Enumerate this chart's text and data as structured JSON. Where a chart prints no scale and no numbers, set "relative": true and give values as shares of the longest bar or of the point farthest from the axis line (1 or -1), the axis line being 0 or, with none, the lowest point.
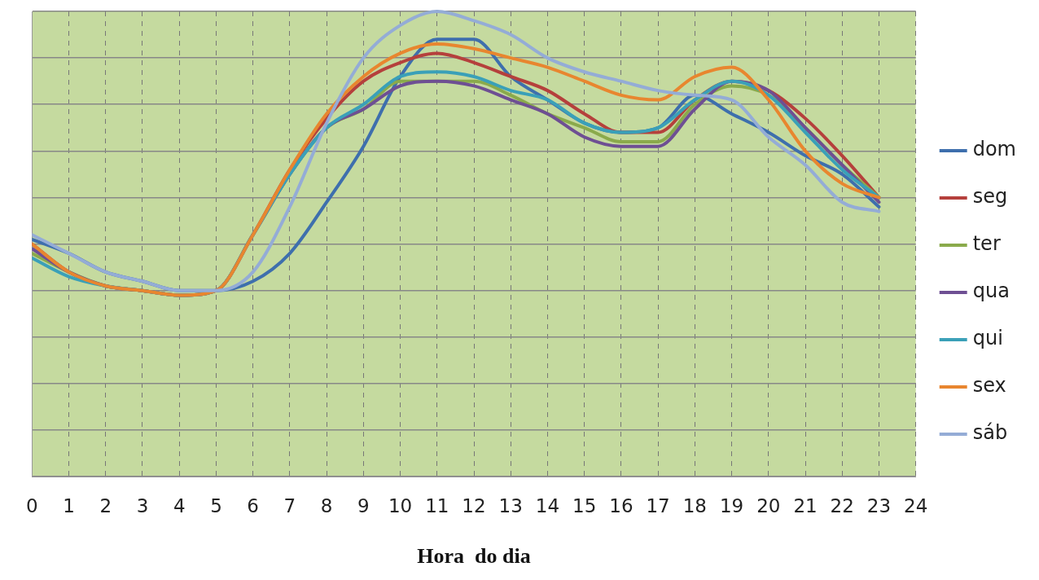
{
  "chart_data": {
    "type": "line",
    "relative": true,
    "xlabel": "Hora  do dia",
    "x": [
      0,
      1,
      2,
      3,
      4,
      5,
      6,
      7,
      8,
      9,
      10,
      11,
      12,
      13,
      14,
      15,
      16,
      17,
      18,
      19,
      20,
      21,
      22,
      23
    ],
    "xlim": [
      0,
      24
    ],
    "xticks": [
      0,
      1,
      2,
      3,
      4,
      5,
      6,
      7,
      8,
      9,
      10,
      11,
      12,
      13,
      14,
      15,
      16,
      17,
      18,
      19,
      20,
      21,
      22,
      23,
      24
    ],
    "grid": true,
    "legend": "right",
    "tick_labels": "x",
    "line_style": "solid",
    "marker": "none",
    "series": [
      {
        "name": "dom",
        "color": "#3e6fad",
        "values": [
          0.51,
          0.48,
          0.44,
          0.42,
          0.4,
          0.4,
          0.42,
          0.48,
          0.59,
          0.71,
          0.86,
          0.94,
          0.94,
          0.86,
          0.81,
          0.76,
          0.74,
          0.75,
          0.82,
          0.78,
          0.74,
          0.69,
          0.65,
          0.58
        ]
      },
      {
        "name": "seg",
        "color": "#b5403c",
        "values": [
          0.5,
          0.44,
          0.41,
          0.4,
          0.39,
          0.4,
          0.52,
          0.66,
          0.77,
          0.85,
          0.89,
          0.91,
          0.89,
          0.86,
          0.83,
          0.78,
          0.74,
          0.74,
          0.81,
          0.85,
          0.83,
          0.77,
          0.69,
          0.6
        ]
      },
      {
        "name": "ter",
        "color": "#8aaa4b",
        "values": [
          0.48,
          0.44,
          0.41,
          0.4,
          0.39,
          0.4,
          0.52,
          0.65,
          0.75,
          0.79,
          0.85,
          0.85,
          0.85,
          0.82,
          0.78,
          0.75,
          0.72,
          0.72,
          0.8,
          0.84,
          0.82,
          0.75,
          0.67,
          0.6
        ]
      },
      {
        "name": "qua",
        "color": "#6e4f93",
        "values": [
          0.49,
          0.44,
          0.41,
          0.4,
          0.39,
          0.4,
          0.52,
          0.65,
          0.75,
          0.79,
          0.84,
          0.85,
          0.84,
          0.81,
          0.78,
          0.73,
          0.71,
          0.71,
          0.79,
          0.85,
          0.83,
          0.75,
          0.67,
          0.59
        ]
      },
      {
        "name": "qui",
        "color": "#3aa0b8",
        "values": [
          0.47,
          0.43,
          0.41,
          0.4,
          0.39,
          0.4,
          0.52,
          0.65,
          0.75,
          0.8,
          0.86,
          0.87,
          0.86,
          0.83,
          0.81,
          0.76,
          0.74,
          0.75,
          0.81,
          0.85,
          0.82,
          0.74,
          0.66,
          0.6
        ]
      },
      {
        "name": "sex",
        "color": "#e8862f",
        "values": [
          0.5,
          0.44,
          0.41,
          0.4,
          0.39,
          0.4,
          0.52,
          0.66,
          0.78,
          0.86,
          0.91,
          0.93,
          0.92,
          0.9,
          0.88,
          0.85,
          0.82,
          0.81,
          0.86,
          0.88,
          0.81,
          0.7,
          0.63,
          0.6
        ]
      },
      {
        "name": "sáb",
        "color": "#94acd6",
        "values": [
          0.52,
          0.48,
          0.44,
          0.42,
          0.4,
          0.4,
          0.44,
          0.58,
          0.76,
          0.9,
          0.97,
          1,
          0.98,
          0.95,
          0.9,
          0.87,
          0.85,
          0.83,
          0.82,
          0.81,
          0.73,
          0.67,
          0.59,
          0.57
        ]
      }
    ]
  }
}
